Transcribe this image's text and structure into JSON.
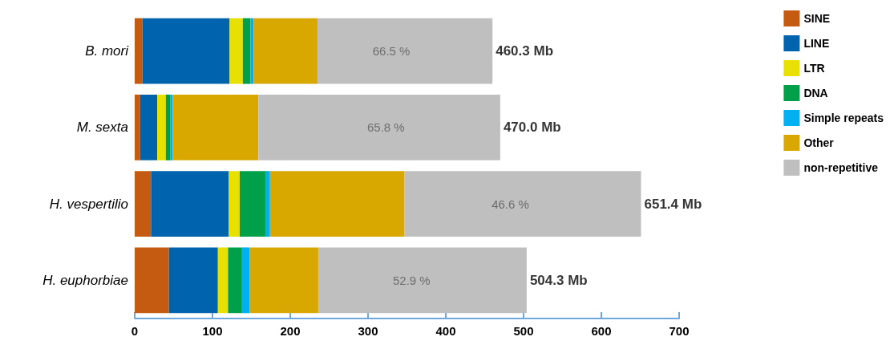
{
  "chart_data": {
    "type": "bar",
    "orientation": "horizontal",
    "stacked": true,
    "categories": [
      "B. mori",
      "M. sexta",
      "H. vespertilio",
      "H. euphorbiae"
    ],
    "series": [
      {
        "name": "SINE",
        "color": "#c55a11",
        "values": [
          10,
          7,
          21,
          44
        ]
      },
      {
        "name": "LINE",
        "color": "#0063ae",
        "values": [
          112,
          22,
          100,
          63
        ]
      },
      {
        "name": "LTR",
        "color": "#e8e000",
        "values": [
          17,
          11,
          14,
          13
        ]
      },
      {
        "name": "DNA",
        "color": "#00a04a",
        "values": [
          10,
          6,
          33,
          18
        ]
      },
      {
        "name": "Simple repeats",
        "color": "#00b0f0",
        "values": [
          4,
          3,
          6,
          10
        ]
      },
      {
        "name": "Other",
        "color": "#d9a800",
        "values": [
          82,
          110,
          173,
          88
        ]
      },
      {
        "name": "non-repetitive",
        "color": "#bfbfbf",
        "values": [
          225,
          311,
          304,
          268
        ]
      }
    ],
    "annotations": [
      {
        "text": "66.5 %",
        "x": 330,
        "y": "B. mori"
      },
      {
        "text": "65.8 %",
        "x": 323,
        "y": "M. sexta"
      },
      {
        "text": "46.6 %",
        "x": 483,
        "y": "H. vespertilio"
      },
      {
        "text": "52.9 %",
        "x": 356,
        "y": "H. euphorbiae"
      }
    ],
    "totals": [
      "460.3 Mb",
      "470.0 Mb",
      "651.4 Mb",
      "504.3 Mb"
    ],
    "xlim": [
      0,
      700
    ],
    "xticks": [
      0,
      100,
      200,
      300,
      400,
      500,
      600,
      700
    ],
    "grid": false,
    "legend": "top right"
  }
}
